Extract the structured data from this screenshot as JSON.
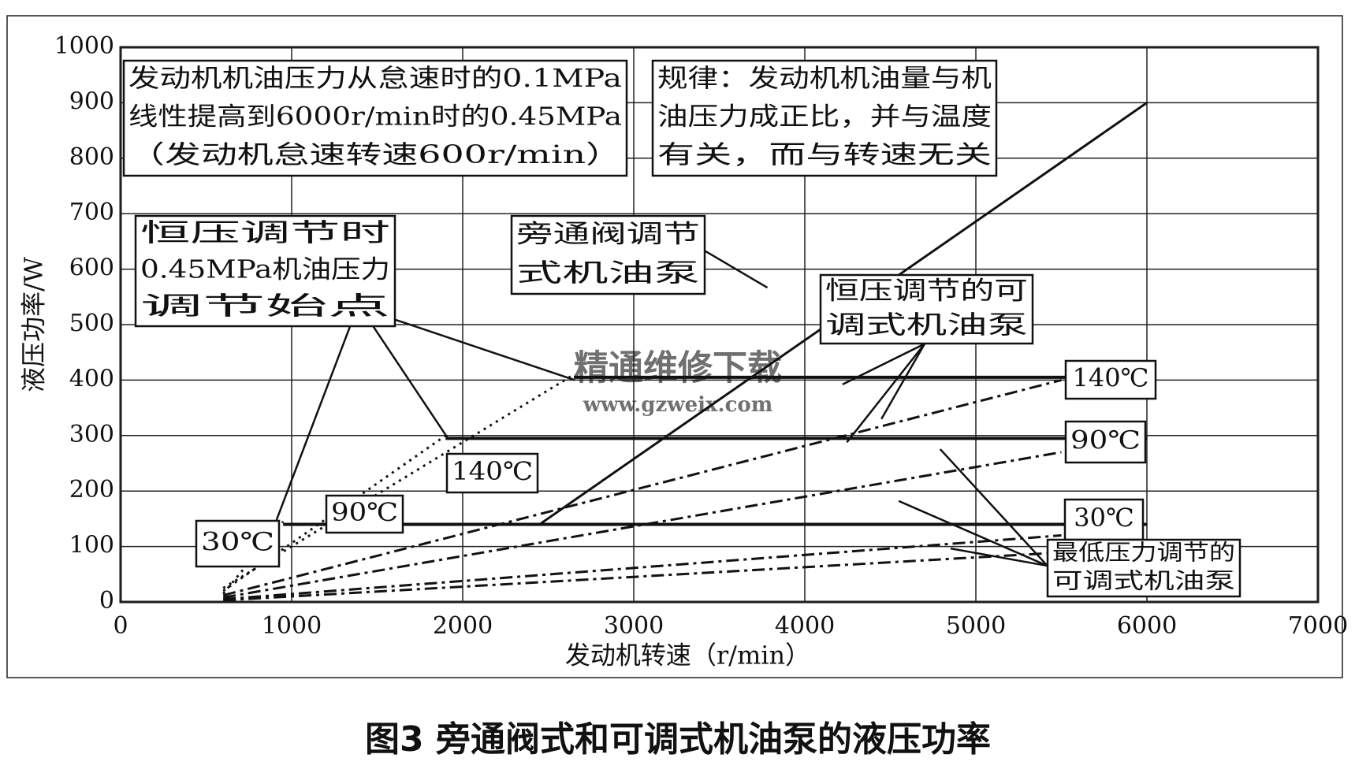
{
  "chart_data": {
    "type": "line",
    "caption": "图3 旁通阀式和可调式机油泵的液压功率",
    "x_label": "发动机转速（r/min）",
    "y_label": "液压功率/W",
    "xlim": [
      0,
      7000
    ],
    "xticks": [
      0,
      1000,
      2000,
      3000,
      4000,
      5000,
      6000,
      7000
    ],
    "ylim": [
      0,
      1000
    ],
    "yticks": [
      0,
      100,
      200,
      300,
      400,
      500,
      600,
      700,
      800,
      900,
      1000
    ],
    "grid": true,
    "watermark": [
      "精通维修下载",
      "www.gzweix.com"
    ],
    "annotations": [
      [
        "发动机机油压力从怠速时的0.1MPa",
        "线性提高到6000r/min时的0.45MPa",
        "（发动机怠速转速600r/min）"
      ],
      [
        "规律：发动机机油量与机",
        "油压力成正比，并与温度",
        "有关，而与转速无关"
      ],
      [
        "恒压调节时",
        "0.45MPa机油压力",
        "调节始点"
      ],
      [
        "旁通阀调节",
        "式机油泵"
      ],
      [
        "恒压调节的可",
        "调式机油泵"
      ],
      [
        "140℃"
      ],
      [
        "90℃"
      ],
      [
        "30℃"
      ],
      [
        "140℃"
      ],
      [
        "90℃"
      ],
      [
        "30℃"
      ],
      [
        "最低压力调节的",
        "可调式机油泵"
      ]
    ],
    "series": [
      {
        "style": "solid",
        "color": "#111111",
        "x": [
          2450,
          6000
        ],
        "values": [
          140,
          900
        ]
      },
      {
        "style": "dotted",
        "color": "#111111",
        "x": [
          600,
          2650
        ],
        "values": [
          25,
          410
        ]
      },
      {
        "style": "solid",
        "color": "#111111",
        "x": [
          2650,
          6000
        ],
        "values": [
          405,
          405
        ]
      },
      {
        "style": "dotted",
        "color": "#111111",
        "x": [
          600,
          1900
        ],
        "values": [
          20,
          300
        ]
      },
      {
        "style": "solid",
        "color": "#111111",
        "x": [
          1900,
          6000
        ],
        "values": [
          295,
          295
        ]
      },
      {
        "style": "dotted",
        "color": "#111111",
        "x": [
          600,
          950
        ],
        "values": [
          15,
          145
        ]
      },
      {
        "style": "solid",
        "color": "#111111",
        "x": [
          950,
          6000
        ],
        "values": [
          140,
          140
        ]
      },
      {
        "style": "dashdot",
        "color": "#111111",
        "x": [
          600,
          5500
        ],
        "values": [
          12,
          400
        ]
      },
      {
        "style": "dashdot",
        "color": "#111111",
        "x": [
          600,
          5500
        ],
        "values": [
          8,
          270
        ]
      },
      {
        "style": "dashdot",
        "color": "#111111",
        "x": [
          600,
          5500
        ],
        "values": [
          5,
          120
        ]
      },
      {
        "style": "dashdot",
        "color": "#111111",
        "x": [
          600,
          5550
        ],
        "values": [
          3,
          90
        ]
      }
    ]
  }
}
